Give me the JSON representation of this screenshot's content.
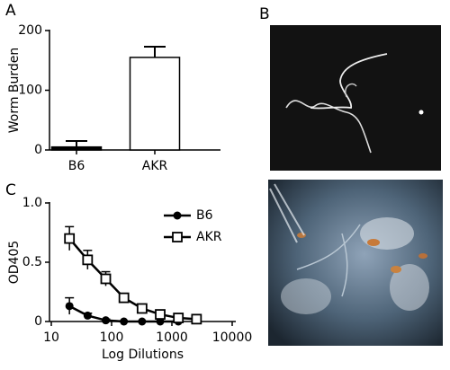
{
  "panel_labels": [
    "A",
    "B",
    "C"
  ],
  "chart_data": [
    {
      "type": "bar",
      "ylabel": "Worm Burden",
      "categories": [
        "B6",
        "AKR"
      ],
      "values": [
        5,
        155
      ],
      "errors": [
        10,
        18
      ],
      "color": "#000000",
      "ylim": [
        0,
        200
      ],
      "yticks": [
        0,
        100,
        200
      ]
    },
    {
      "type": "line",
      "xlabel": "Log Dilutions",
      "ylabel": "OD405",
      "log_x": true,
      "xlim": [
        10,
        10000
      ],
      "xticks": [
        10,
        100,
        1000,
        10000
      ],
      "ylim": [
        0,
        1
      ],
      "yticks": [
        0,
        {
          "value": 0.5,
          "label": "0.5"
        },
        {
          "value": 1,
          "label": "1.0"
        }
      ],
      "legend": "upper right",
      "series": [
        {
          "name": "B6",
          "color": "#000000",
          "marker": "filled-circle",
          "x": [
            20,
            40,
            80,
            160,
            320,
            640,
            1280
          ],
          "values": [
            0.13,
            0.05,
            0.01,
            0,
            0,
            0,
            0
          ],
          "errors": [
            0.07,
            0.02,
            0.01,
            0,
            0,
            0,
            0
          ]
        },
        {
          "name": "AKR",
          "color": "#000000",
          "marker": "open-square",
          "x": [
            20,
            40,
            80,
            160,
            320,
            640,
            1280,
            2560
          ],
          "values": [
            0.7,
            0.52,
            0.36,
            0.2,
            0.11,
            0.06,
            0.03,
            0.02
          ],
          "errors": [
            0.1,
            0.08,
            0.06,
            0.03,
            0.02,
            0.01,
            0.01,
            0.01
          ]
        }
      ]
    }
  ]
}
